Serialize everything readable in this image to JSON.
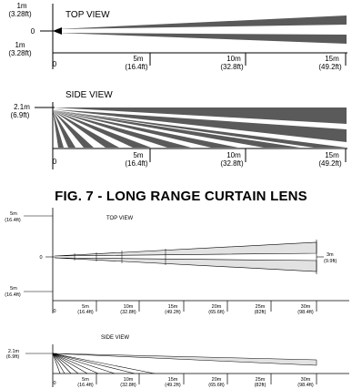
{
  "caption": "FIG. 7 - LONG RANGE CURTAIN LENS",
  "diagram_top": {
    "top_view": {
      "title": "TOP VIEW",
      "y_labels": {
        "upper_m": "1m",
        "upper_ft": "(3.28ft)",
        "center": "0",
        "lower_m": "1m",
        "lower_ft": "(3.28ft)"
      },
      "x_origin": "0",
      "x_ticks": [
        {
          "m": "5m",
          "ft": "(16.4ft)"
        },
        {
          "m": "10m",
          "ft": "(32.8ft)"
        },
        {
          "m": "15m",
          "ft": "(49.2ft)"
        }
      ]
    },
    "side_view": {
      "title": "SIDE VIEW",
      "y_labels": {
        "height_m": "2.1m",
        "height_ft": "(6.9ft)"
      },
      "x_origin": "0",
      "x_ticks": [
        {
          "m": "5m",
          "ft": "(16.4ft)"
        },
        {
          "m": "10m",
          "ft": "(32.8ft)"
        },
        {
          "m": "15m",
          "ft": "(49.2ft)"
        }
      ]
    },
    "colors": {
      "beam": "#5a5a5a"
    }
  },
  "diagram_bottom": {
    "top_view": {
      "title": "TOP VIEW",
      "y_labels": {
        "upper_m": "5m",
        "upper_ft": "(16.4ft)",
        "center": "0",
        "lower_m": "5m",
        "lower_ft": "(16.4ft)"
      },
      "right_label": {
        "m": "3m",
        "ft": "(9.9ft)"
      },
      "x_origin": "0",
      "x_ticks": [
        {
          "m": "5m",
          "ft": "(16.4ft)"
        },
        {
          "m": "10m",
          "ft": "(32.8ft)"
        },
        {
          "m": "15m",
          "ft": "(49.2ft)"
        },
        {
          "m": "20m",
          "ft": "(65.6ft)"
        },
        {
          "m": "25m",
          "ft": "(82ft)"
        },
        {
          "m": "30m",
          "ft": "(98.4ft)"
        }
      ]
    },
    "side_view": {
      "title": "SIDE VIEW",
      "y_labels": {
        "height_m": "2.1m",
        "height_ft": "(6.9ft)"
      },
      "x_origin": "0",
      "x_ticks": [
        {
          "m": "5m",
          "ft": "(16.4ft)"
        },
        {
          "m": "10m",
          "ft": "(32.8ft)"
        },
        {
          "m": "15m",
          "ft": "(49.2ft)"
        },
        {
          "m": "20m",
          "ft": "(65.6ft)"
        },
        {
          "m": "25m",
          "ft": "(82ft)"
        },
        {
          "m": "30m",
          "ft": "(98.4ft)"
        }
      ]
    },
    "colors": {
      "beam": "#e2e2e2"
    }
  }
}
